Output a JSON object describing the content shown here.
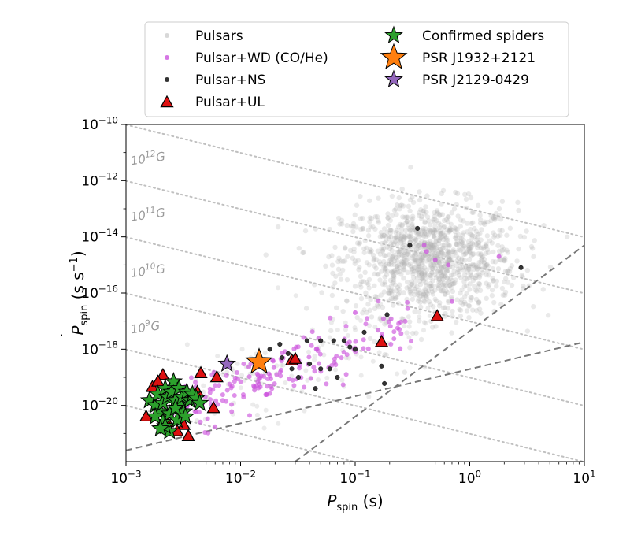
{
  "chart_data": {
    "type": "scatter",
    "title": "",
    "xlabel": {
      "main": "P",
      "sub": "spin",
      "unit": " (s)"
    },
    "ylabel": {
      "main": "P",
      "sub": "spin",
      "unit": " (s s",
      "unit_sup": "−1",
      "unit_end": ")"
    },
    "xscale": "log",
    "yscale": "log",
    "xlim": [
      0.001,
      10
    ],
    "ylim": [
      1e-22,
      1e-10
    ],
    "x_ticks": [
      {
        "value": 0.001,
        "base": "10",
        "exp": "−3"
      },
      {
        "value": 0.01,
        "base": "10",
        "exp": "−2"
      },
      {
        "value": 0.1,
        "base": "10",
        "exp": "−1"
      },
      {
        "value": 1,
        "base": "10",
        "exp": "0"
      },
      {
        "value": 10,
        "base": "10",
        "exp": "1"
      }
    ],
    "y_ticks": [
      {
        "value": 1e-20,
        "base": "10",
        "exp": "−20"
      },
      {
        "value": 1e-18,
        "base": "10",
        "exp": "−18"
      },
      {
        "value": 1e-16,
        "base": "10",
        "exp": "−16"
      },
      {
        "value": 1e-14,
        "base": "10",
        "exp": "−14"
      },
      {
        "value": 1e-12,
        "base": "10",
        "exp": "−12"
      },
      {
        "value": 1e-10,
        "base": "10",
        "exp": "−10"
      }
    ],
    "field_lines": [
      {
        "B": 10000000000000.0,
        "label": null
      },
      {
        "B": 1000000000000.0,
        "label": {
          "base": "10",
          "exp": "12",
          "unit": "G"
        }
      },
      {
        "B": 100000000000.0,
        "label": {
          "base": "10",
          "exp": "11",
          "unit": "G"
        }
      },
      {
        "B": 10000000000.0,
        "label": {
          "base": "10",
          "exp": "10",
          "unit": "G"
        }
      },
      {
        "B": 1000000000.0,
        "label": {
          "base": "10",
          "exp": "9",
          "unit": "G"
        }
      },
      {
        "B": 100000000.0,
        "label": null
      }
    ],
    "death_lines": [
      {
        "points": [
          [
            0.001,
            2.5e-22
          ],
          [
            10,
            1.8e-18
          ]
        ]
      },
      {
        "points": [
          [
            0.03,
            1e-22
          ],
          [
            10,
            5e-15
          ]
        ]
      }
    ],
    "legend": {
      "placement": "top",
      "entries": [
        {
          "label": "Pulsars",
          "marker": "small-dot",
          "color": "#d3d3d3"
        },
        {
          "label": "Pulsar+WD (CO/He)",
          "marker": "dot",
          "color": "#cc55dd"
        },
        {
          "label": "Pulsar+NS",
          "marker": "dot",
          "color": "#333333"
        },
        {
          "label": "Pulsar+UL",
          "marker": "triangle",
          "color": "#dd1111"
        },
        {
          "label": "Confirmed spiders",
          "marker": "star",
          "color": "#2ca02c"
        },
        {
          "label": "PSR J1932+2121",
          "marker": "big-star",
          "color": "#ff7f0e"
        },
        {
          "label": "PSR J2129-0429",
          "marker": "star",
          "color": "#9467bd"
        }
      ]
    },
    "series": [
      {
        "name": "Pulsar+NS",
        "color": "#333333",
        "points": [
          [
            0.023,
            5e-19
          ],
          [
            0.028,
            2e-19
          ],
          [
            0.04,
            3e-19
          ],
          [
            0.05,
            2e-19
          ],
          [
            0.06,
            2e-19
          ],
          [
            0.032,
            1e-19
          ],
          [
            0.026,
            7e-19
          ],
          [
            0.045,
            4e-20
          ],
          [
            0.07,
            1e-19
          ],
          [
            0.09,
            1.2e-18
          ],
          [
            0.1,
            1e-18
          ],
          [
            0.12,
            4e-18
          ],
          [
            0.19,
            1.7e-17
          ],
          [
            0.18,
            6e-20
          ],
          [
            0.17,
            2.5e-19
          ],
          [
            0.3,
            5e-15
          ],
          [
            0.35,
            2e-14
          ],
          [
            2.8,
            8e-16
          ],
          [
            0.038,
            2e-18
          ],
          [
            0.05,
            2e-18
          ],
          [
            0.065,
            2e-18
          ],
          [
            0.08,
            2e-18
          ],
          [
            0.018,
            1e-18
          ],
          [
            0.022,
            1.5e-18
          ]
        ]
      },
      {
        "name": "Pulsar+UL",
        "color": "#dd1111",
        "points": [
          [
            0.0015,
            4e-21
          ],
          [
            0.0017,
            4.5e-20
          ],
          [
            0.0021,
            1.2e-19
          ],
          [
            0.0025,
            5e-20
          ],
          [
            0.0032,
            2e-21
          ],
          [
            0.0035,
            8e-22
          ],
          [
            0.0042,
            3e-20
          ],
          [
            0.0045,
            1.4e-19
          ],
          [
            0.0058,
            8e-21
          ],
          [
            0.0062,
            1e-19
          ],
          [
            0.0028,
            1.2e-21
          ],
          [
            0.0023,
            2.5e-21
          ],
          [
            0.028,
            4e-19
          ],
          [
            0.03,
            4.5e-19
          ],
          [
            0.17,
            1.8e-18
          ],
          [
            0.52,
            1.5e-17
          ],
          [
            0.0019,
            7e-20
          ]
        ]
      },
      {
        "name": "Confirmed spiders",
        "color": "#2ca02c",
        "points": [
          [
            0.0016,
            1.5e-20
          ],
          [
            0.0018,
            1e-20
          ],
          [
            0.0019,
            2.5e-20
          ],
          [
            0.002,
            6e-21
          ],
          [
            0.0021,
            1.2e-20
          ],
          [
            0.0022,
            4e-20
          ],
          [
            0.0023,
            2e-20
          ],
          [
            0.0024,
            5e-21
          ],
          [
            0.0025,
            3e-20
          ],
          [
            0.0026,
            7e-20
          ],
          [
            0.0027,
            1.5e-20
          ],
          [
            0.0028,
            3e-21
          ],
          [
            0.0029,
            4e-20
          ],
          [
            0.003,
            1e-20
          ],
          [
            0.0031,
            2e-20
          ],
          [
            0.0032,
            6e-21
          ],
          [
            0.0034,
            3e-20
          ],
          [
            0.0036,
            1.5e-20
          ],
          [
            0.0038,
            2.5e-20
          ],
          [
            0.0041,
            1.8e-20
          ],
          [
            0.0044,
            1.2e-20
          ],
          [
            0.0021,
            2.5e-21
          ],
          [
            0.0024,
            1.2e-21
          ],
          [
            0.0018,
            4e-21
          ],
          [
            0.0027,
            8e-21
          ],
          [
            0.0022,
            1.8e-21
          ],
          [
            0.0033,
            4e-21
          ],
          [
            0.002,
            1.5e-21
          ]
        ]
      },
      {
        "name": "PSR J1932+2121",
        "color": "#ff7f0e",
        "points": [
          [
            0.0145,
            3.5e-19
          ]
        ]
      },
      {
        "name": "PSR J2129-0429",
        "color": "#9467bd",
        "points": [
          [
            0.0076,
            3e-19
          ]
        ]
      }
    ]
  }
}
